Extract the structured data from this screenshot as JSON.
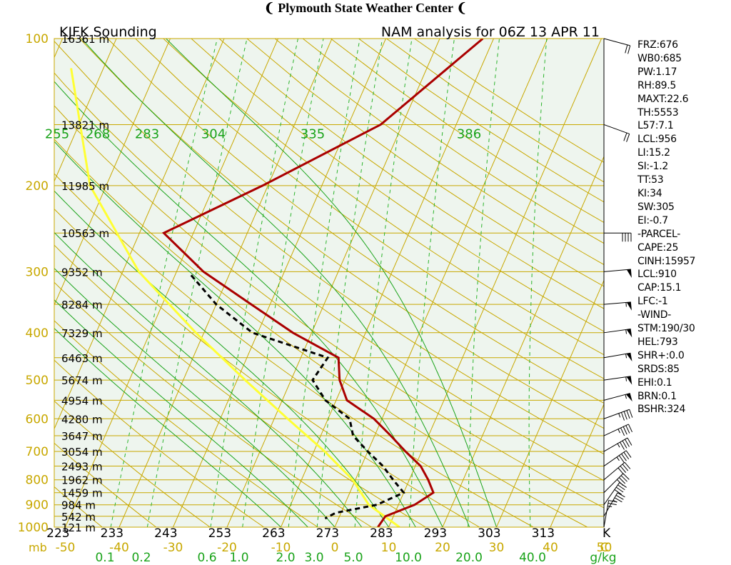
{
  "header": {
    "title": "Plymouth State Weather Center",
    "flag_glyph": "❨"
  },
  "chart_data": {
    "type": "skew-t",
    "station_title": "KJFK Sounding",
    "run_title": "NAM analysis for 06Z 13 APR 11",
    "pressure_axis": {
      "unit_label": "mb",
      "labels": [
        100,
        200,
        300,
        400,
        500,
        600,
        700,
        800,
        900,
        1000
      ]
    },
    "height_labels": [
      {
        "p": 100,
        "text": "16361 m"
      },
      {
        "p": 150,
        "text": "13821 m"
      },
      {
        "p": 200,
        "text": "11985 m"
      },
      {
        "p": 250,
        "text": "10563 m"
      },
      {
        "p": 300,
        "text": "9352 m"
      },
      {
        "p": 350,
        "text": "8284 m"
      },
      {
        "p": 400,
        "text": "7329 m"
      },
      {
        "p": 450,
        "text": "6463 m"
      },
      {
        "p": 500,
        "text": "5674 m"
      },
      {
        "p": 550,
        "text": "4954 m"
      },
      {
        "p": 600,
        "text": "4280 m"
      },
      {
        "p": 650,
        "text": "3647 m"
      },
      {
        "p": 700,
        "text": "3054 m"
      },
      {
        "p": 750,
        "text": "2493 m"
      },
      {
        "p": 800,
        "text": "1962 m"
      },
      {
        "p": 850,
        "text": "1459 m"
      },
      {
        "p": 900,
        "text": "984 m"
      },
      {
        "p": 950,
        "text": "542 m"
      },
      {
        "p": 1000,
        "text": "121 m"
      }
    ],
    "temperature_axis": {
      "unit_label": "C",
      "labels": [
        -50,
        -40,
        -30,
        -20,
        -10,
        0,
        10,
        20,
        30,
        40,
        50
      ]
    },
    "potential_temp_labels": {
      "unit_label": "K",
      "values": [
        223,
        233,
        243,
        253,
        263,
        273,
        283,
        293,
        303,
        313
      ]
    },
    "theta_e_labels": [
      255,
      268,
      283,
      304,
      335,
      386
    ],
    "mixing_ratio_axis": {
      "unit_label": "g/kg",
      "labels": [
        "0.1",
        "0.2",
        "0.6",
        "1.0",
        "2.0",
        "3.0",
        "5.0",
        "10.0",
        "20.0",
        "40.0"
      ]
    },
    "temperature_profile": [
      {
        "p": 100,
        "t": -12.0
      },
      {
        "p": 150,
        "t": -24.0
      },
      {
        "p": 200,
        "t": -41.0
      },
      {
        "p": 250,
        "t": -55.5
      },
      {
        "p": 300,
        "t": -45.0
      },
      {
        "p": 350,
        "t": -33.5
      },
      {
        "p": 400,
        "t": -23.5
      },
      {
        "p": 450,
        "t": -13.0
      },
      {
        "p": 500,
        "t": -11.0
      },
      {
        "p": 550,
        "t": -8.0
      },
      {
        "p": 600,
        "t": -1.5
      },
      {
        "p": 650,
        "t": 3.0
      },
      {
        "p": 700,
        "t": 7.0
      },
      {
        "p": 750,
        "t": 11.0
      },
      {
        "p": 800,
        "t": 13.5
      },
      {
        "p": 850,
        "t": 15.5
      },
      {
        "p": 900,
        "t": 13.0
      },
      {
        "p": 950,
        "t": 8.5
      },
      {
        "p": 1000,
        "t": 8.0
      }
    ],
    "dewpoint_profile": [
      {
        "p": 305,
        "t": -47.0
      },
      {
        "p": 350,
        "t": -40.0
      },
      {
        "p": 400,
        "t": -31.0
      },
      {
        "p": 450,
        "t": -15.0
      },
      {
        "p": 500,
        "t": -16.0
      },
      {
        "p": 550,
        "t": -12.0
      },
      {
        "p": 600,
        "t": -6.0
      },
      {
        "p": 650,
        "t": -4.0
      },
      {
        "p": 700,
        "t": 0.0
      },
      {
        "p": 750,
        "t": 4.0
      },
      {
        "p": 800,
        "t": 7.0
      },
      {
        "p": 850,
        "t": 10.0
      },
      {
        "p": 900,
        "t": 6.0
      },
      {
        "p": 935,
        "t": -1.0
      },
      {
        "p": 960,
        "t": -2.5
      }
    ],
    "parcel_profile": [
      {
        "p": 115,
        "t": -86.0
      },
      {
        "p": 200,
        "t": -73.0
      },
      {
        "p": 300,
        "t": -57.0
      },
      {
        "p": 400,
        "t": -41.5
      },
      {
        "p": 500,
        "t": -28.5
      },
      {
        "p": 600,
        "t": -17.5
      },
      {
        "p": 700,
        "t": -8.0
      },
      {
        "p": 800,
        "t": -0.5
      },
      {
        "p": 900,
        "t": 4.5
      },
      {
        "p": 1000,
        "t": 12.0
      }
    ],
    "wind_barbs": [
      {
        "p": 100,
        "dir": 285,
        "kt": 20
      },
      {
        "p": 150,
        "dir": 290,
        "kt": 20
      },
      {
        "p": 250,
        "dir": 270,
        "kt": 40
      },
      {
        "p": 300,
        "dir": 265,
        "kt": 50
      },
      {
        "p": 350,
        "dir": 265,
        "kt": 55
      },
      {
        "p": 400,
        "dir": 262,
        "kt": 55
      },
      {
        "p": 450,
        "dir": 260,
        "kt": 55
      },
      {
        "p": 500,
        "dir": 262,
        "kt": 55
      },
      {
        "p": 550,
        "dir": 255,
        "kt": 55
      },
      {
        "p": 600,
        "dir": 250,
        "kt": 45
      },
      {
        "p": 650,
        "dir": 245,
        "kt": 45
      },
      {
        "p": 700,
        "dir": 240,
        "kt": 45
      },
      {
        "p": 750,
        "dir": 235,
        "kt": 45
      },
      {
        "p": 800,
        "dir": 230,
        "kt": 40
      },
      {
        "p": 850,
        "dir": 225,
        "kt": 40
      },
      {
        "p": 900,
        "dir": 215,
        "kt": 40
      },
      {
        "p": 950,
        "dir": 210,
        "kt": 35
      },
      {
        "p": 1000,
        "dir": 190,
        "kt": 25
      }
    ],
    "colors": {
      "background": "#eef5ee",
      "isobar": "#c8a800",
      "isotherm": "#c8a800",
      "dry_adiabat": "#c8a800",
      "moist_adiabat": "#1aa31a",
      "mixing_ratio": "#2bb32b",
      "temperature": "#aa0000",
      "dewpoint": "#000000",
      "parcel": "#ffff33",
      "axis_label": "#c8a800",
      "green_label": "#1aa31a"
    }
  },
  "indices": [
    "FRZ:676",
    "WB0:685",
    "PW:1.17",
    "RH:89.5",
    "MAXT:22.6",
    "TH:5553",
    "L57:7.1",
    "LCL:956",
    "LI:15.2",
    "SI:-1.2",
    "TT:53",
    "KI:34",
    "SW:305",
    "EI:-0.7",
    "-PARCEL-",
    "CAPE:25",
    "CINH:15957",
    "LCL:910",
    "CAP:15.1",
    "LFC:-1",
    "-WIND-",
    "STM:190/30",
    "HEL:793",
    "SHR+:0.0",
    "SRDS:85",
    "EHI:0.1",
    "BRN:0.1",
    "BSHR:324"
  ]
}
